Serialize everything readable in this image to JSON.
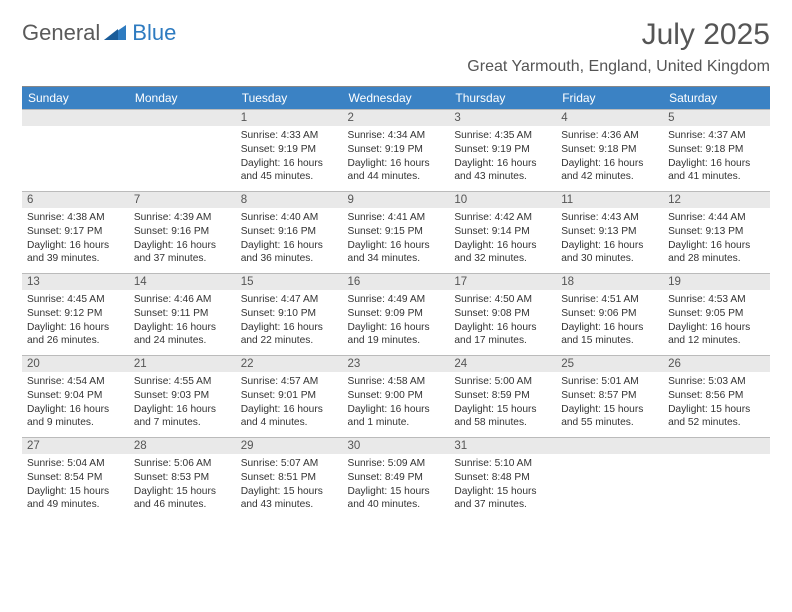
{
  "brand": {
    "part1": "General",
    "part2": "Blue"
  },
  "title": "July 2025",
  "subtitle": "Great Yarmouth, England, United Kingdom",
  "colors": {
    "header_bg": "#3b82c4",
    "header_text": "#ffffff",
    "daynum_bg": "#e9e9e9",
    "text": "#333333",
    "brand_gray": "#5a5a5a",
    "brand_blue": "#2e7bc0"
  },
  "weekdays": [
    "Sunday",
    "Monday",
    "Tuesday",
    "Wednesday",
    "Thursday",
    "Friday",
    "Saturday"
  ],
  "weeks": [
    [
      {
        "n": "",
        "sunrise": "",
        "sunset": "",
        "daylight": ""
      },
      {
        "n": "",
        "sunrise": "",
        "sunset": "",
        "daylight": ""
      },
      {
        "n": "1",
        "sunrise": "Sunrise: 4:33 AM",
        "sunset": "Sunset: 9:19 PM",
        "daylight": "Daylight: 16 hours and 45 minutes."
      },
      {
        "n": "2",
        "sunrise": "Sunrise: 4:34 AM",
        "sunset": "Sunset: 9:19 PM",
        "daylight": "Daylight: 16 hours and 44 minutes."
      },
      {
        "n": "3",
        "sunrise": "Sunrise: 4:35 AM",
        "sunset": "Sunset: 9:19 PM",
        "daylight": "Daylight: 16 hours and 43 minutes."
      },
      {
        "n": "4",
        "sunrise": "Sunrise: 4:36 AM",
        "sunset": "Sunset: 9:18 PM",
        "daylight": "Daylight: 16 hours and 42 minutes."
      },
      {
        "n": "5",
        "sunrise": "Sunrise: 4:37 AM",
        "sunset": "Sunset: 9:18 PM",
        "daylight": "Daylight: 16 hours and 41 minutes."
      }
    ],
    [
      {
        "n": "6",
        "sunrise": "Sunrise: 4:38 AM",
        "sunset": "Sunset: 9:17 PM",
        "daylight": "Daylight: 16 hours and 39 minutes."
      },
      {
        "n": "7",
        "sunrise": "Sunrise: 4:39 AM",
        "sunset": "Sunset: 9:16 PM",
        "daylight": "Daylight: 16 hours and 37 minutes."
      },
      {
        "n": "8",
        "sunrise": "Sunrise: 4:40 AM",
        "sunset": "Sunset: 9:16 PM",
        "daylight": "Daylight: 16 hours and 36 minutes."
      },
      {
        "n": "9",
        "sunrise": "Sunrise: 4:41 AM",
        "sunset": "Sunset: 9:15 PM",
        "daylight": "Daylight: 16 hours and 34 minutes."
      },
      {
        "n": "10",
        "sunrise": "Sunrise: 4:42 AM",
        "sunset": "Sunset: 9:14 PM",
        "daylight": "Daylight: 16 hours and 32 minutes."
      },
      {
        "n": "11",
        "sunrise": "Sunrise: 4:43 AM",
        "sunset": "Sunset: 9:13 PM",
        "daylight": "Daylight: 16 hours and 30 minutes."
      },
      {
        "n": "12",
        "sunrise": "Sunrise: 4:44 AM",
        "sunset": "Sunset: 9:13 PM",
        "daylight": "Daylight: 16 hours and 28 minutes."
      }
    ],
    [
      {
        "n": "13",
        "sunrise": "Sunrise: 4:45 AM",
        "sunset": "Sunset: 9:12 PM",
        "daylight": "Daylight: 16 hours and 26 minutes."
      },
      {
        "n": "14",
        "sunrise": "Sunrise: 4:46 AM",
        "sunset": "Sunset: 9:11 PM",
        "daylight": "Daylight: 16 hours and 24 minutes."
      },
      {
        "n": "15",
        "sunrise": "Sunrise: 4:47 AM",
        "sunset": "Sunset: 9:10 PM",
        "daylight": "Daylight: 16 hours and 22 minutes."
      },
      {
        "n": "16",
        "sunrise": "Sunrise: 4:49 AM",
        "sunset": "Sunset: 9:09 PM",
        "daylight": "Daylight: 16 hours and 19 minutes."
      },
      {
        "n": "17",
        "sunrise": "Sunrise: 4:50 AM",
        "sunset": "Sunset: 9:08 PM",
        "daylight": "Daylight: 16 hours and 17 minutes."
      },
      {
        "n": "18",
        "sunrise": "Sunrise: 4:51 AM",
        "sunset": "Sunset: 9:06 PM",
        "daylight": "Daylight: 16 hours and 15 minutes."
      },
      {
        "n": "19",
        "sunrise": "Sunrise: 4:53 AM",
        "sunset": "Sunset: 9:05 PM",
        "daylight": "Daylight: 16 hours and 12 minutes."
      }
    ],
    [
      {
        "n": "20",
        "sunrise": "Sunrise: 4:54 AM",
        "sunset": "Sunset: 9:04 PM",
        "daylight": "Daylight: 16 hours and 9 minutes."
      },
      {
        "n": "21",
        "sunrise": "Sunrise: 4:55 AM",
        "sunset": "Sunset: 9:03 PM",
        "daylight": "Daylight: 16 hours and 7 minutes."
      },
      {
        "n": "22",
        "sunrise": "Sunrise: 4:57 AM",
        "sunset": "Sunset: 9:01 PM",
        "daylight": "Daylight: 16 hours and 4 minutes."
      },
      {
        "n": "23",
        "sunrise": "Sunrise: 4:58 AM",
        "sunset": "Sunset: 9:00 PM",
        "daylight": "Daylight: 16 hours and 1 minute."
      },
      {
        "n": "24",
        "sunrise": "Sunrise: 5:00 AM",
        "sunset": "Sunset: 8:59 PM",
        "daylight": "Daylight: 15 hours and 58 minutes."
      },
      {
        "n": "25",
        "sunrise": "Sunrise: 5:01 AM",
        "sunset": "Sunset: 8:57 PM",
        "daylight": "Daylight: 15 hours and 55 minutes."
      },
      {
        "n": "26",
        "sunrise": "Sunrise: 5:03 AM",
        "sunset": "Sunset: 8:56 PM",
        "daylight": "Daylight: 15 hours and 52 minutes."
      }
    ],
    [
      {
        "n": "27",
        "sunrise": "Sunrise: 5:04 AM",
        "sunset": "Sunset: 8:54 PM",
        "daylight": "Daylight: 15 hours and 49 minutes."
      },
      {
        "n": "28",
        "sunrise": "Sunrise: 5:06 AM",
        "sunset": "Sunset: 8:53 PM",
        "daylight": "Daylight: 15 hours and 46 minutes."
      },
      {
        "n": "29",
        "sunrise": "Sunrise: 5:07 AM",
        "sunset": "Sunset: 8:51 PM",
        "daylight": "Daylight: 15 hours and 43 minutes."
      },
      {
        "n": "30",
        "sunrise": "Sunrise: 5:09 AM",
        "sunset": "Sunset: 8:49 PM",
        "daylight": "Daylight: 15 hours and 40 minutes."
      },
      {
        "n": "31",
        "sunrise": "Sunrise: 5:10 AM",
        "sunset": "Sunset: 8:48 PM",
        "daylight": "Daylight: 15 hours and 37 minutes."
      },
      {
        "n": "",
        "sunrise": "",
        "sunset": "",
        "daylight": ""
      },
      {
        "n": "",
        "sunrise": "",
        "sunset": "",
        "daylight": ""
      }
    ]
  ]
}
